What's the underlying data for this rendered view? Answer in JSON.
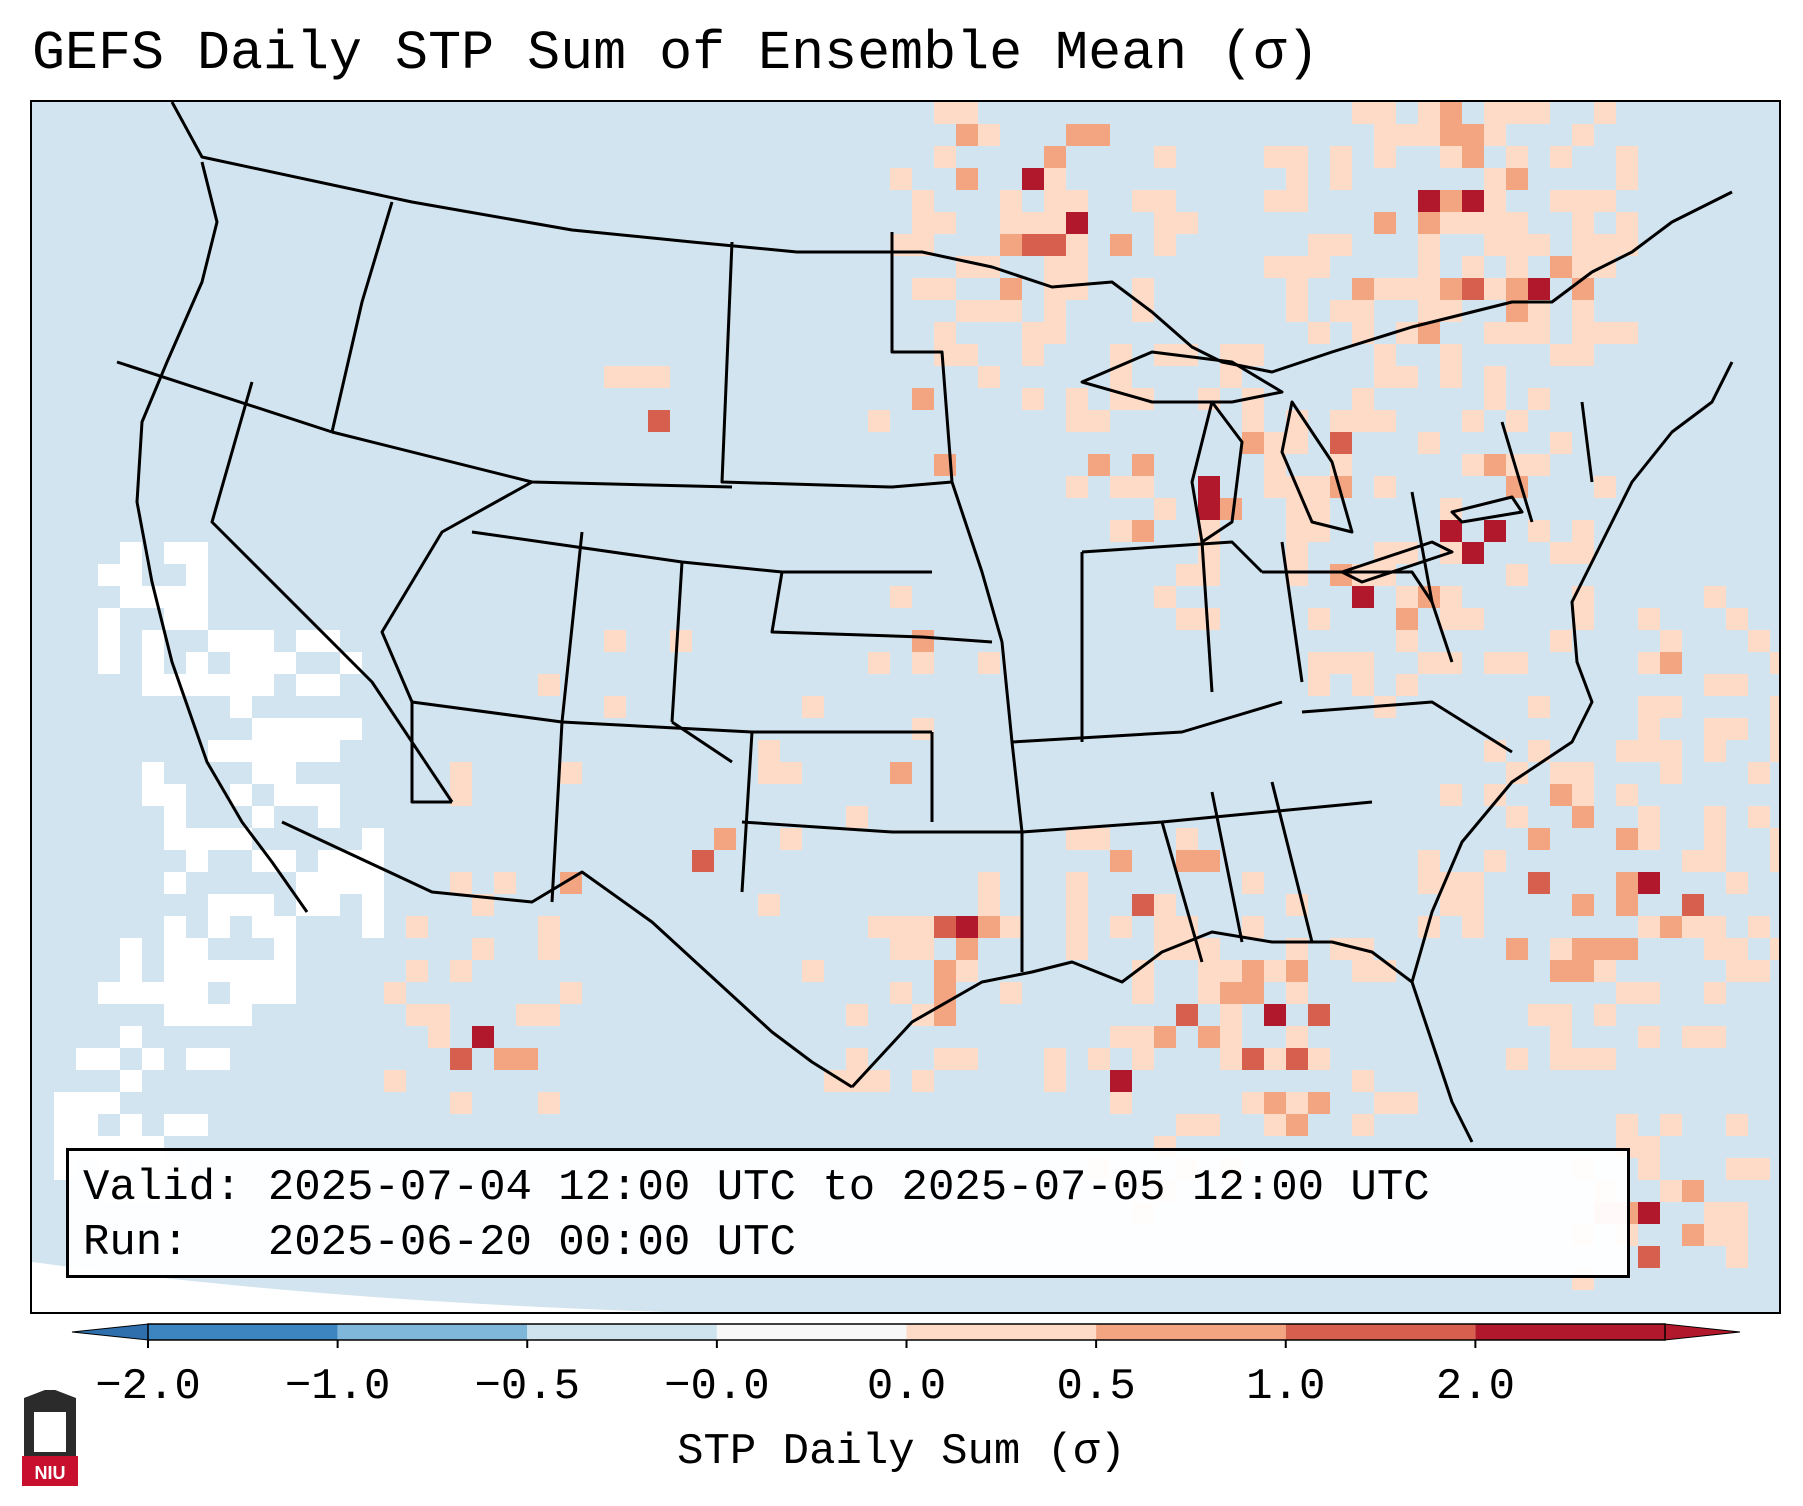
{
  "title": "GEFS Daily STP Sum of Ensemble Mean (σ)",
  "valid_label": "Valid:",
  "valid_text": "2025-07-04 12:00 UTC to 2025-07-05 12:00 UTC",
  "run_label": "Run:",
  "run_text": "2025-06-20 00:00 UTC",
  "colorbar": {
    "label": "STP Daily Sum (σ)",
    "ticks": [
      "−2.0",
      "−1.0",
      "−0.5",
      "−0.0",
      "0.0",
      "0.5",
      "1.0",
      "2.0"
    ],
    "colors": [
      "#3d85c0",
      "#7fb7da",
      "#cfe3ef",
      "#f7f7f7",
      "#fddbc7",
      "#f3a481",
      "#d6604d",
      "#b2182b"
    ],
    "extend_low_color": "#2f6fae",
    "extend_high_color": "#b2182b"
  },
  "logo": {
    "text": "NIU",
    "color": "#c8102e",
    "icon": "university-tower-icon"
  },
  "map": {
    "ocean_color": "#cfe3ef",
    "land_color": "#d2e4ef",
    "border_color": "#000000",
    "region": "Continental United States",
    "anomaly_legend": {
      "low": "#fddbc7",
      "mid": "#f3a481",
      "high": "#d6604d",
      "very_high": "#b2182b"
    }
  }
}
